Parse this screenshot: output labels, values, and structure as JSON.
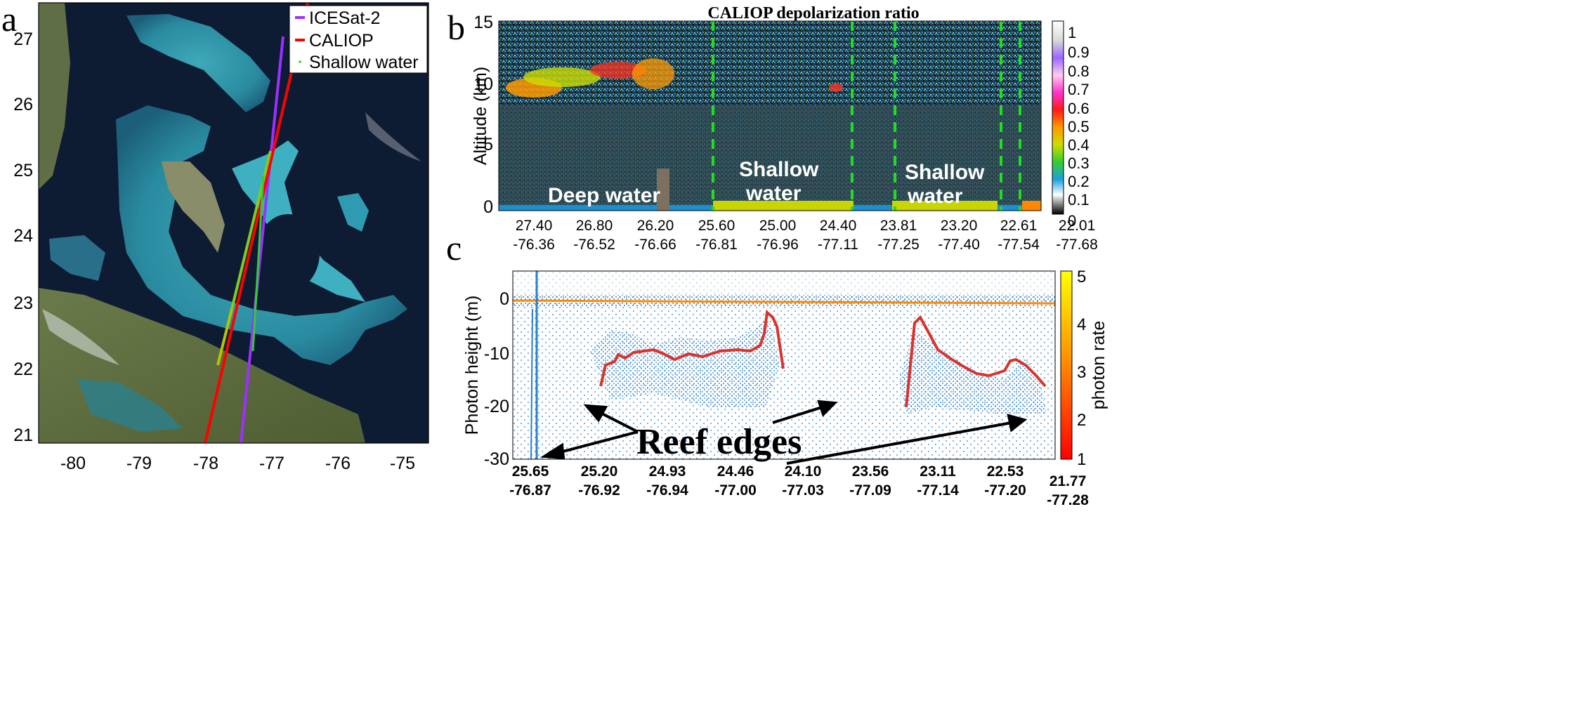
{
  "panels": {
    "a": {
      "label": "a",
      "legend": [
        "ICESat-2",
        "CALIOP",
        "Shallow water"
      ],
      "colors": {
        "icesat2": "#9b30ff",
        "caliop": "#ff0000",
        "shallow": "#33cc33",
        "ocean": "#0d1b33"
      },
      "y_ticks": [
        "27",
        "26",
        "25",
        "24",
        "23",
        "22",
        "21"
      ],
      "x_ticks": [
        "-80",
        "-79",
        "-78",
        "-77",
        "-76",
        "-75"
      ]
    },
    "b": {
      "label": "b",
      "title": "CALIOP depolarization ratio",
      "ylabel": "Altitude (km)",
      "y_ticks": [
        "15",
        "10",
        "5",
        "0"
      ],
      "x_ticks_top": [
        "27.40",
        "26.80",
        "26.20",
        "25.60",
        "25.00",
        "24.40",
        "23.81",
        "23.20",
        "22.61",
        "22.01"
      ],
      "x_ticks_bottom": [
        "-76.36",
        "-76.52",
        "-76.66",
        "-76.81",
        "-76.96",
        "-77.11",
        "-77.25",
        "-77.40",
        "-77.54",
        "-77.68"
      ],
      "colorbar_ticks": [
        "1",
        "0.9",
        "0.8",
        "0.7",
        "0.6",
        "0.5",
        "0.4",
        "0.3",
        "0.2",
        "0.1",
        "0",
        "0"
      ],
      "annotations": {
        "deep": "Deep water",
        "shallow1_l1": "Shallow",
        "shallow1_l2": "water",
        "shallow2_l1": "Shallow",
        "shallow2_l2": "water"
      }
    },
    "c": {
      "label": "c",
      "ylabel": "Photon height (m)",
      "y_ticks": [
        "0",
        "-10",
        "-20",
        "-30"
      ],
      "x_ticks_top": [
        "25.65",
        "25.20",
        "24.93",
        "24.46",
        "24.10",
        "23.56",
        "23.11",
        "22.53",
        "21.77"
      ],
      "x_ticks_bottom": [
        "-76.87",
        "-76.92",
        "-76.94",
        "-77.00",
        "-77.03",
        "-77.09",
        "-77.14",
        "-77.20",
        "-77.28"
      ],
      "colorbar_ticks": [
        "5",
        "4",
        "3",
        "2",
        "1"
      ],
      "colorbar_label": "photon rate",
      "annotation": "Reef edges"
    }
  },
  "chart_data": [
    {
      "type": "heatmap",
      "title": "CALIOP depolarization ratio",
      "ylabel": "Altitude (km)",
      "ylim": [
        0,
        15
      ],
      "colorbar_range": [
        0,
        1
      ],
      "x_categories_lat": [
        "27.40",
        "26.80",
        "26.20",
        "25.60",
        "25.00",
        "24.40",
        "23.81",
        "23.20",
        "22.61",
        "22.01"
      ],
      "x_categories_lon": [
        "-76.36",
        "-76.52",
        "-76.66",
        "-76.81",
        "-76.96",
        "-77.11",
        "-77.25",
        "-77.40",
        "-77.54",
        "-77.68"
      ]
    },
    {
      "type": "scatter",
      "ylabel": "Photon height (m)",
      "ylim": [
        -30,
        5
      ],
      "colorbar_label": "photon rate",
      "colorbar_range": [
        1,
        5
      ],
      "x_categories_lat": [
        "25.65",
        "25.20",
        "24.93",
        "24.46",
        "24.10",
        "23.56",
        "23.11",
        "22.53",
        "21.77"
      ],
      "x_categories_lon": [
        "-76.87",
        "-76.92",
        "-76.94",
        "-77.00",
        "-77.03",
        "-77.09",
        "-77.14",
        "-77.20",
        "-77.28"
      ]
    }
  ]
}
